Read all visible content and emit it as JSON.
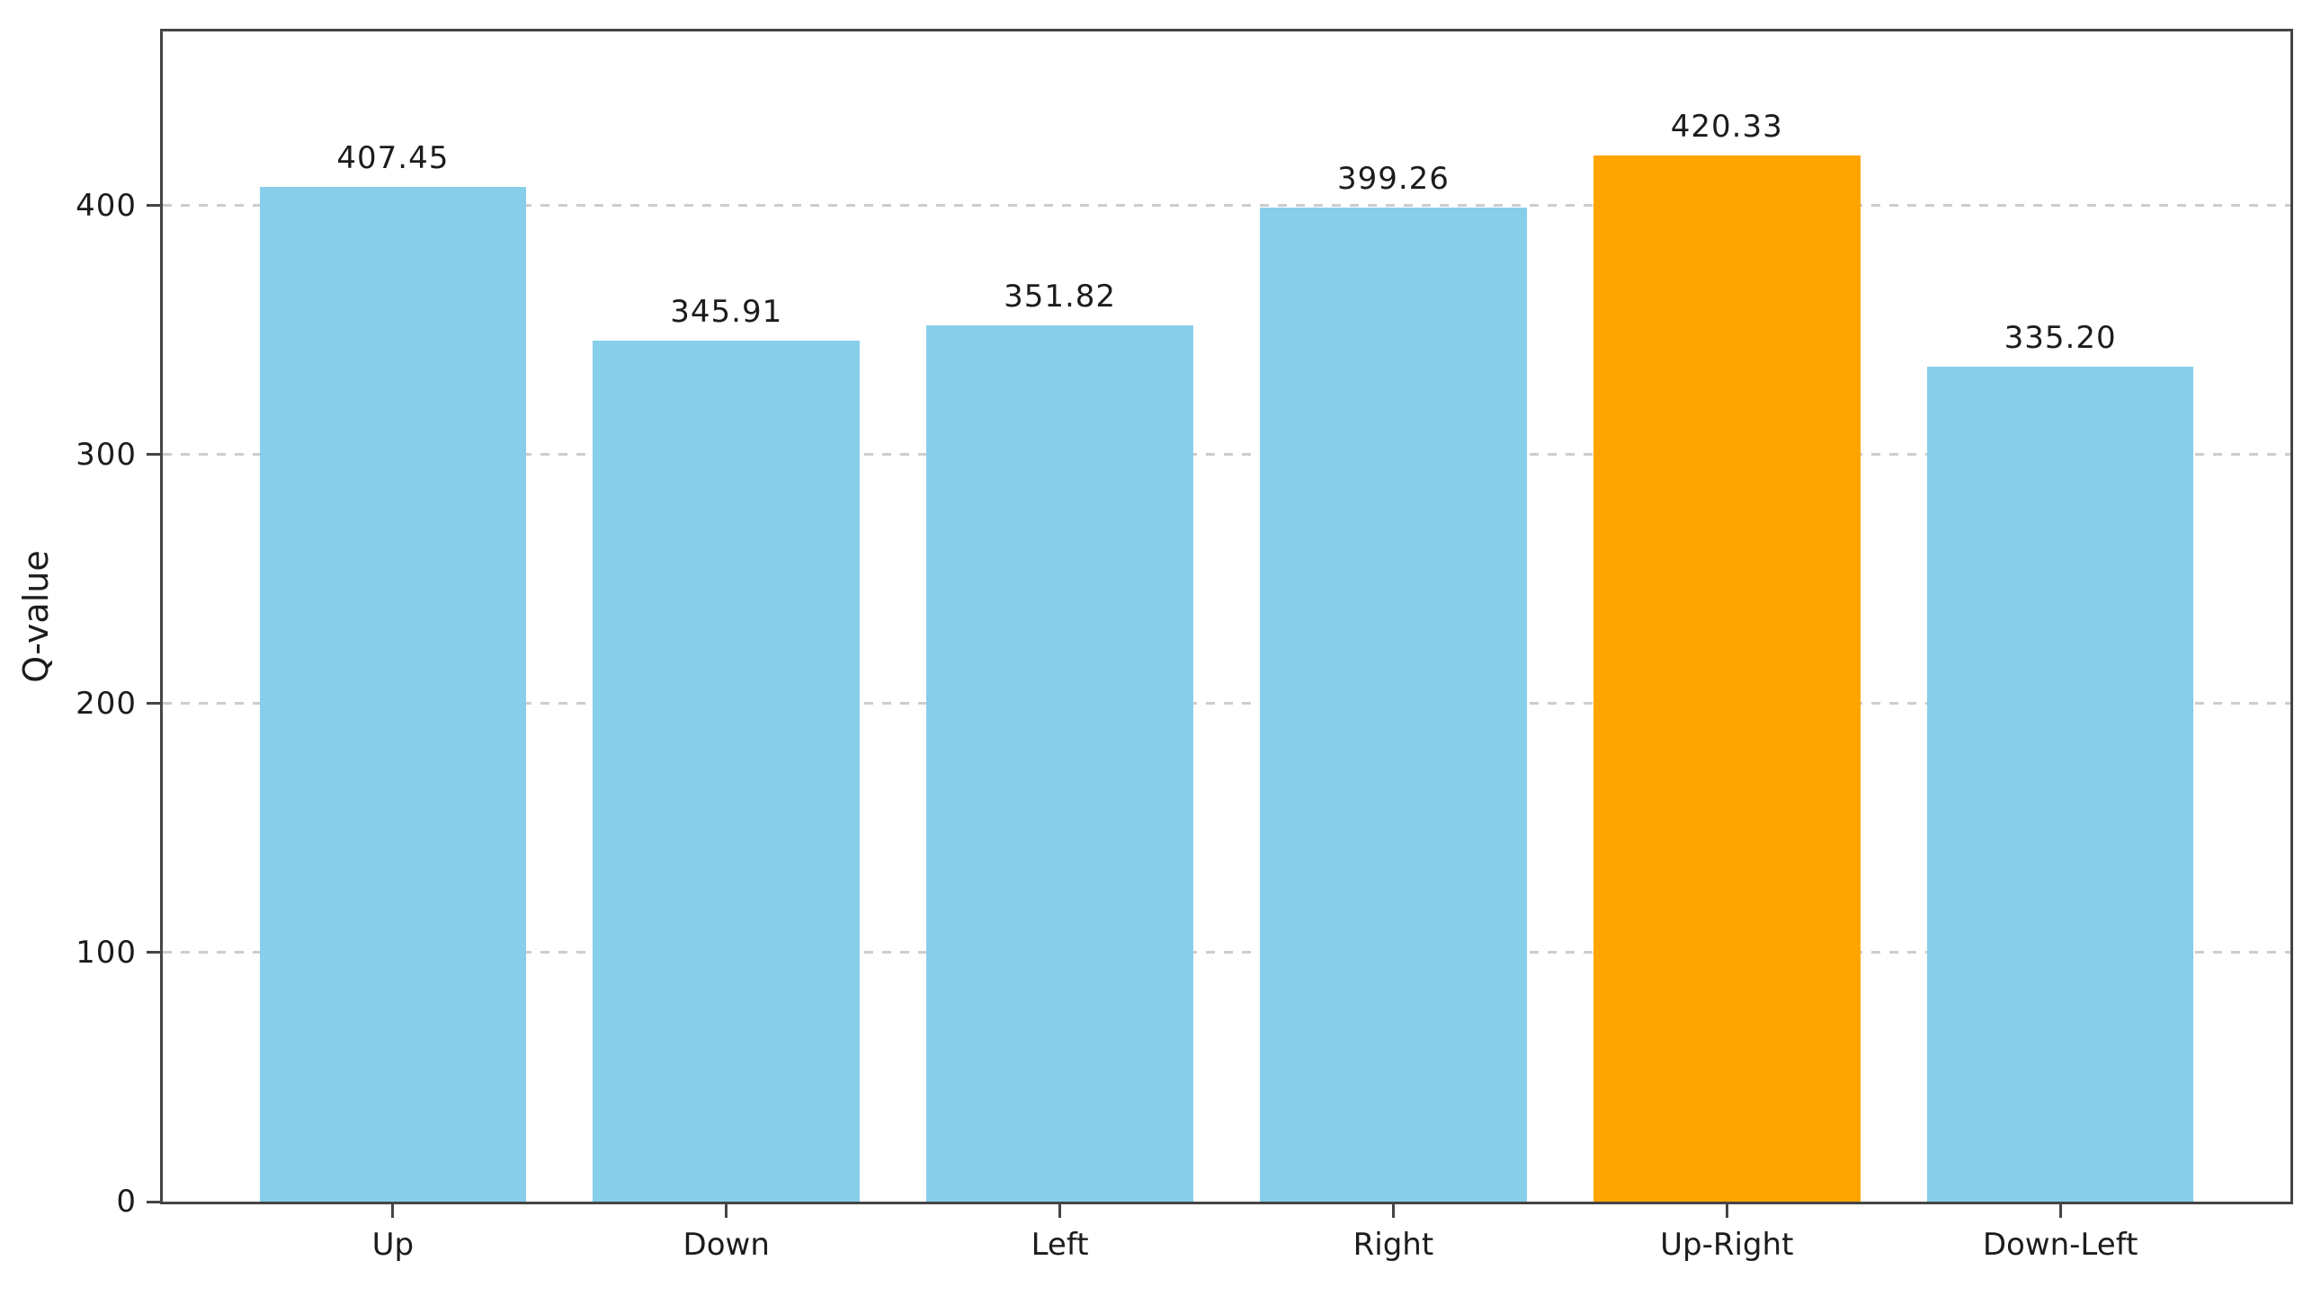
{
  "chart_data": {
    "type": "bar",
    "title": "",
    "xlabel": "",
    "ylabel": "Q-value",
    "categories": [
      "Up",
      "Down",
      "Left",
      "Right",
      "Up-Right",
      "Down-Left"
    ],
    "values": [
      407.45,
      345.91,
      351.82,
      399.26,
      420.33,
      335.2
    ],
    "value_labels": [
      "407.45",
      "345.91",
      "351.82",
      "399.26",
      "420.33",
      "335.20"
    ],
    "ylim": [
      0,
      470
    ],
    "yticks": [
      0,
      100,
      200,
      300,
      400
    ],
    "grid": "horizontal-dashed",
    "legend": "none",
    "highlight_index": 4,
    "colors": {
      "bar_default": "#87CEEB",
      "bar_highlight": "#FFA500",
      "grid": "#cdcdcd",
      "spine": "#454545",
      "text": "#1c1c1c",
      "background": "#ffffff"
    }
  }
}
